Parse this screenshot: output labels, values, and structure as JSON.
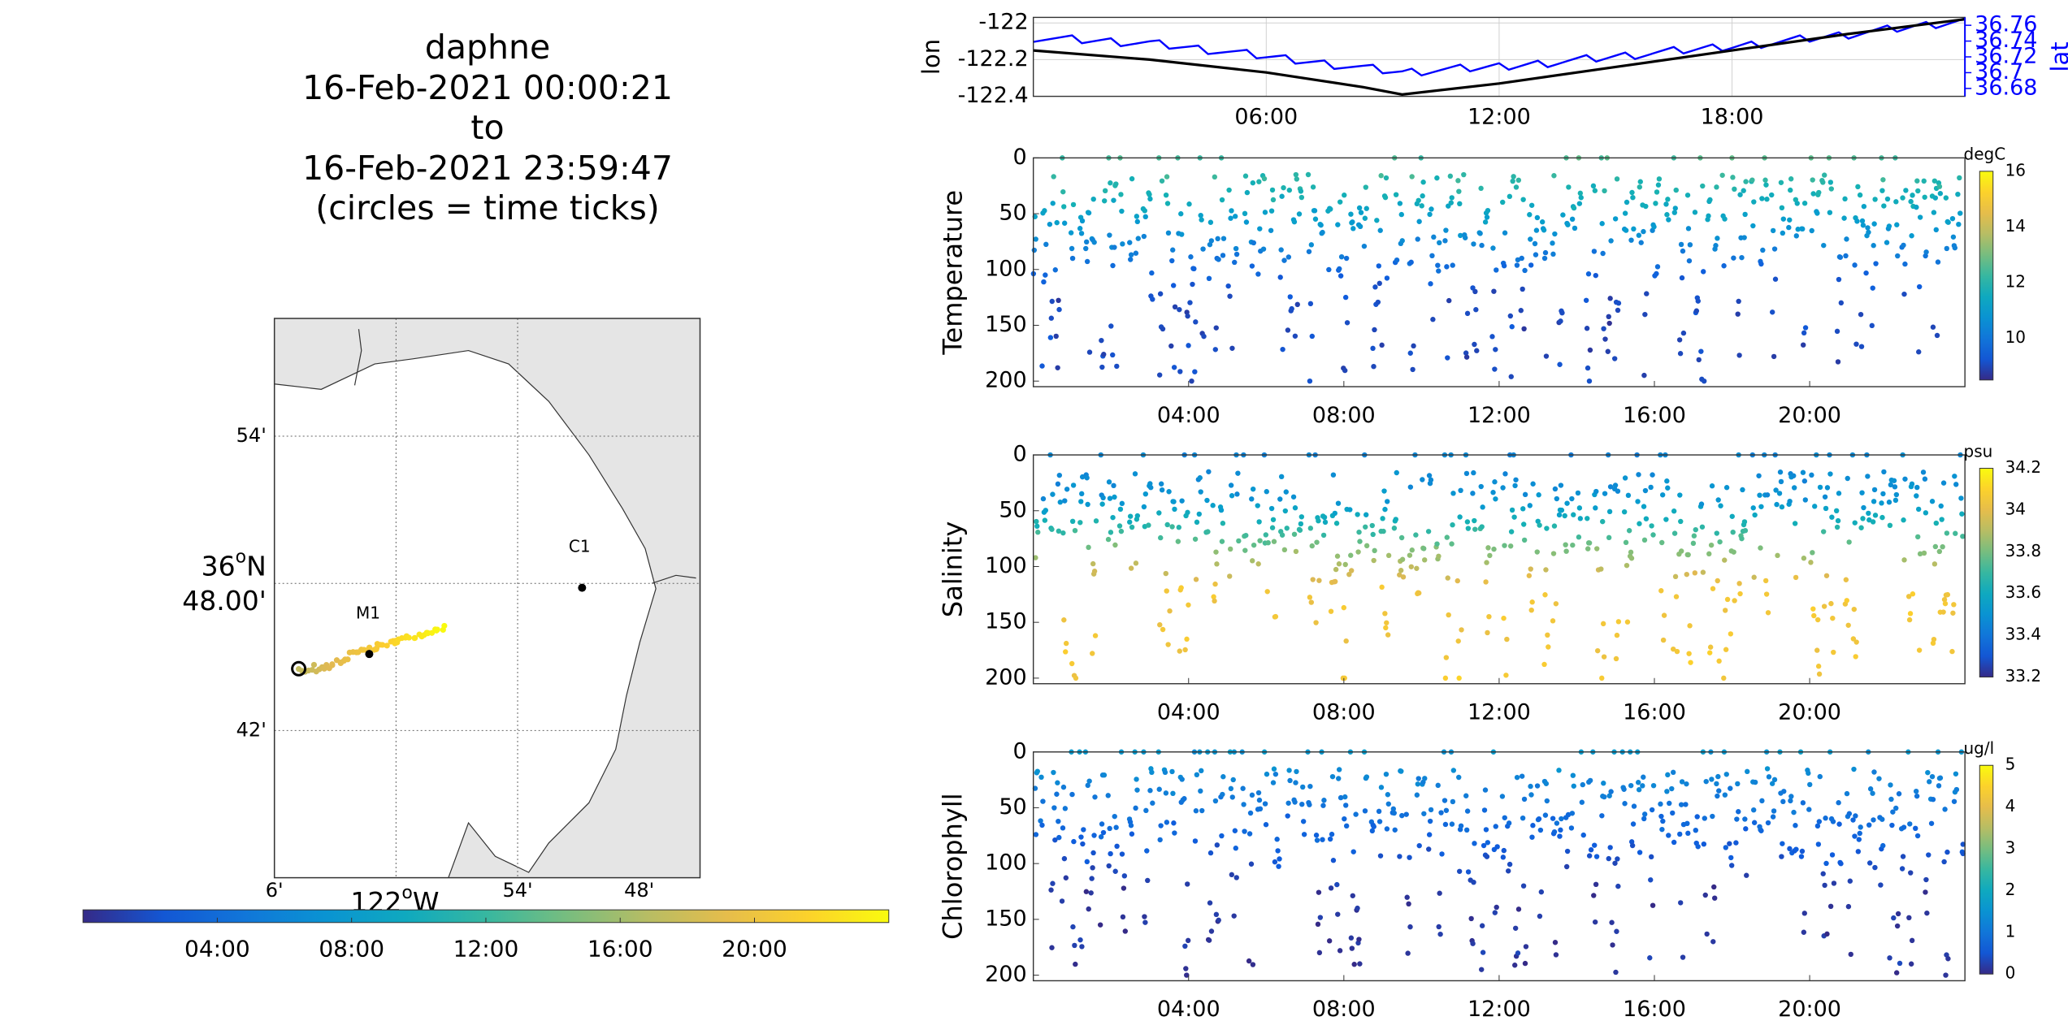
{
  "title": {
    "vehicle": "daphne",
    "start": "16-Feb-2021 00:00:21",
    "connector": "to",
    "end": "16-Feb-2021 23:59:47",
    "note": "(circles = time ticks)"
  },
  "map": {
    "lat_ticks": [
      {
        "label": "54'",
        "lat": 36.9
      },
      {
        "label": "48.00'",
        "lat": 36.8,
        "prefix": "36",
        "sup": "o",
        "suffix": "N"
      },
      {
        "label": "42'",
        "lat": 36.7
      }
    ],
    "lon_ticks": [
      {
        "label": "6'",
        "lon": -122.1
      },
      {
        "label": "54'",
        "lon": -121.9
      },
      {
        "label": "48'",
        "lon": -121.8
      }
    ],
    "lon_axis_label": {
      "prefix": "122",
      "sup": "o",
      "suffix": "W"
    },
    "lon_gridlines": [
      -122.0,
      -121.9
    ],
    "lon_range": [
      -122.1,
      -121.75
    ],
    "lat_range": [
      36.6,
      36.98
    ],
    "land_color": "#e5e5e5",
    "sea_color": "#ffffff",
    "moorings": [
      {
        "name": "M1",
        "lon": -122.022,
        "lat": 36.752
      },
      {
        "name": "C1",
        "lon": -121.847,
        "lat": 36.797
      }
    ],
    "track_start": {
      "lon": -122.078,
      "lat": 36.742
    },
    "track_end": {
      "lon": -121.961,
      "lat": 36.77
    },
    "time_tick_circle": {
      "lon": -122.08,
      "lat": 36.742
    },
    "colorbar_ticks": [
      "04:00",
      "08:00",
      "12:00",
      "16:00",
      "20:00"
    ]
  },
  "chart_data": [
    {
      "type": "line",
      "title": "",
      "ylabel_left": "lon",
      "ylabel_right": "lat",
      "x_unit": "hours of 16-Feb-2021",
      "x_ticks": [
        "06:00",
        "12:00",
        "18:00"
      ],
      "xlim": [
        0,
        24
      ],
      "ylim_left": [
        -122.4,
        -121.97
      ],
      "ylim_right": [
        36.67,
        36.77
      ],
      "left_ticks": [
        "-122",
        "-122.2",
        "-122.4"
      ],
      "right_ticks": [
        "36.76",
        "36.74",
        "36.72",
        "36.7",
        "36.68"
      ],
      "grid": true,
      "series": [
        {
          "axis": "left",
          "color": "#000000",
          "x": [
            0,
            3,
            6,
            8.5,
            9.5,
            12,
            15,
            18,
            21,
            24
          ],
          "y": [
            -122.15,
            -122.2,
            -122.27,
            -122.35,
            -122.39,
            -122.33,
            -122.24,
            -122.15,
            -122.06,
            -121.98
          ]
        },
        {
          "axis": "right",
          "color": "#0000ff",
          "sawtooth": true,
          "x": [
            0,
            3,
            6,
            8.5,
            9.5,
            12,
            15,
            18,
            21,
            24
          ],
          "y": [
            36.745,
            36.737,
            36.72,
            36.706,
            36.7,
            36.707,
            36.72,
            36.733,
            36.748,
            36.765
          ]
        }
      ]
    },
    {
      "type": "scatter",
      "ylabel": "Temperature",
      "units": "degC",
      "x_ticks": [
        "04:00",
        "08:00",
        "12:00",
        "16:00",
        "20:00"
      ],
      "y_ticks": [
        "0",
        "50",
        "100",
        "150",
        "200"
      ],
      "ylim": [
        0,
        205
      ],
      "yreverse": true,
      "clim": [
        8.5,
        16
      ],
      "cbar_ticks": [
        16,
        14,
        12,
        10
      ],
      "profile": {
        "surface": 12.5,
        "mixed": 11.6,
        "deep": 9.0,
        "mld": 40
      }
    },
    {
      "type": "scatter",
      "ylabel": "Salinity",
      "units": "psu",
      "x_ticks": [
        "04:00",
        "08:00",
        "12:00",
        "16:00",
        "20:00"
      ],
      "y_ticks": [
        "0",
        "50",
        "100",
        "150",
        "200"
      ],
      "ylim": [
        0,
        205
      ],
      "yreverse": true,
      "clim": [
        33.2,
        34.2
      ],
      "cbar_ticks": [
        34.2,
        34,
        33.8,
        33.6,
        33.4,
        33.2
      ],
      "profile": {
        "surface": 33.45,
        "mixed": 33.5,
        "deep": 34.05,
        "mld": 40
      }
    },
    {
      "type": "scatter",
      "ylabel": "Chlorophyll",
      "units": "ug/l",
      "x_ticks": [
        "04:00",
        "08:00",
        "12:00",
        "16:00",
        "20:00"
      ],
      "y_ticks": [
        "0",
        "50",
        "100",
        "150",
        "200"
      ],
      "ylim": [
        0,
        205
      ],
      "yreverse": true,
      "clim": [
        0,
        5
      ],
      "cbar_ticks": [
        5,
        4,
        3,
        2,
        1,
        0
      ],
      "profile": {
        "surface": 1.6,
        "mixed": 1.0,
        "deep": 0.15,
        "mld": 45
      }
    }
  ]
}
